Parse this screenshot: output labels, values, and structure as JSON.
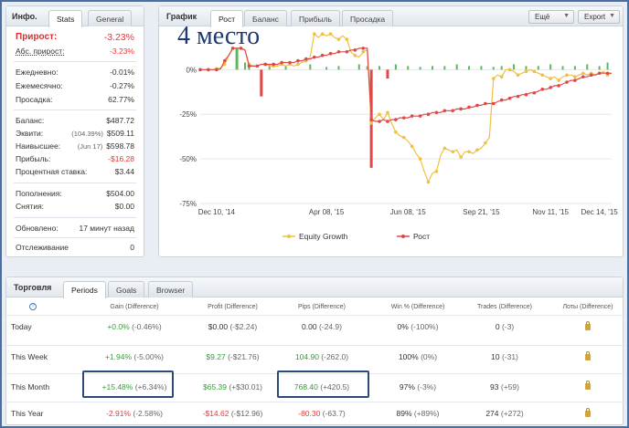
{
  "left_panel": {
    "title": "Инфо.",
    "tabs": [
      "Stats",
      "General"
    ],
    "gain_label": "Прирост:",
    "gain_value": "-3.23%",
    "abs_gain_label": "Абс. прирост:",
    "abs_gain_value": "-3.23%",
    "daily_label": "Ежедневно:",
    "daily_value": "-0.01%",
    "monthly_label": "Ежемесячно:",
    "monthly_value": "-0.27%",
    "drawdown_label": "Просадка:",
    "drawdown_value": "62.77%",
    "balance_label": "Баланс:",
    "balance_value": "$487.72",
    "equity_label": "Эквити:",
    "equity_pct": "(104.39%)",
    "equity_value": "$509.11",
    "highest_label": "Наивысшее:",
    "highest_date": "(Jun 17)",
    "highest_value": "$598.78",
    "profit_label": "Прибыль:",
    "profit_value": "-$16.28",
    "interest_label": "Процентная ставка:",
    "interest_value": "$3.44",
    "deposits_label": "Пополнения:",
    "deposits_value": "$504.00",
    "withdrawals_label": "Снятия:",
    "withdrawals_value": "$0.00",
    "updated_label": "Обновлено:",
    "updated_value": "17 минут назад",
    "tracking_label": "Отслеживание",
    "tracking_value": "0"
  },
  "chart_panel": {
    "title": "График",
    "tabs": [
      "Рост",
      "Баланс",
      "Прибыль",
      "Просадка"
    ],
    "export_menu": "Ещё",
    "export_button": "Export",
    "overlay_text": "4 место"
  },
  "chart_data": {
    "type": "line",
    "x_tick_labels": [
      "Dec 10, '14",
      "Apr 08, '15",
      "Jun 08, '15",
      "Sep 21, '15",
      "Nov 11, '15",
      "Dec 14, '15"
    ],
    "y_tick_labels": [
      "0%",
      "-25%",
      "-50%",
      "-75%"
    ],
    "ylim": [
      -75,
      15
    ],
    "legend_position": "bottom",
    "grid": true,
    "series": [
      {
        "name": "Equity Growth",
        "color": "#f0c040",
        "x": [
          0,
          0.05,
          0.1,
          0.15,
          0.2,
          0.25,
          0.3,
          0.35,
          0.4,
          0.45,
          0.5,
          0.55,
          0.6,
          0.65,
          0.7,
          0.75,
          0.8,
          0.85,
          0.9,
          0.95,
          1.0,
          1.05,
          1.1,
          1.15,
          1.2,
          1.25,
          1.3,
          1.35,
          1.4,
          1.45,
          1.5,
          1.55,
          1.6,
          1.65,
          1.7,
          1.75,
          1.8,
          1.85,
          1.9,
          1.95,
          2.0,
          2.05,
          2.1,
          2.15,
          2.2,
          2.25,
          2.3,
          2.35,
          2.4,
          2.45,
          2.5,
          2.55,
          2.6,
          2.65,
          2.7,
          2.75,
          2.8,
          2.85,
          2.9,
          2.95,
          3.0,
          3.05,
          3.1,
          3.15,
          3.2,
          3.25,
          3.3,
          3.35,
          3.4,
          3.45,
          3.5,
          3.55,
          3.6,
          3.65,
          3.7,
          3.75,
          3.8,
          3.85,
          3.9,
          3.95,
          4.0,
          4.05,
          4.1,
          4.15,
          4.2,
          4.25,
          4.3,
          4.35,
          4.4,
          4.45,
          4.5,
          4.55,
          4.6,
          4.65,
          4.7,
          4.75,
          4.8,
          4.85,
          4.9,
          4.95,
          5.0,
          5.05
        ],
        "y": [
          0,
          0,
          0,
          0,
          0.5,
          1,
          3,
          8,
          12,
          12,
          12,
          11,
          3,
          2,
          2,
          3,
          3,
          2,
          2,
          2,
          3,
          2,
          3,
          2,
          3,
          4,
          5,
          7,
          20,
          18,
          20,
          19,
          20,
          18,
          17,
          19,
          17,
          10,
          8,
          7,
          10,
          11,
          -30,
          -27,
          -25,
          -28,
          -24,
          -30,
          -35,
          -37,
          -38,
          -40,
          -43,
          -47,
          -50,
          -57,
          -63,
          -58,
          -57,
          -48,
          -44,
          -45,
          -46,
          -45,
          -49,
          -46,
          -46,
          -47,
          -45,
          -44,
          -41,
          -38,
          -5,
          -3,
          -4,
          0,
          0,
          -1,
          -3,
          -2,
          -1,
          0,
          -1,
          -2,
          -3,
          -4,
          -5,
          -4,
          -6,
          -4,
          -3,
          -3,
          -4,
          -3,
          -2,
          -3,
          -2,
          -3,
          -2,
          -1,
          -3,
          -2
        ]
      },
      {
        "name": "Рост",
        "color": "#e04848",
        "x": [
          0,
          0.05,
          0.1,
          0.15,
          0.2,
          0.25,
          0.3,
          0.35,
          0.4,
          0.45,
          0.5,
          0.55,
          0.6,
          0.65,
          0.7,
          0.75,
          0.8,
          0.85,
          0.9,
          0.95,
          1.0,
          1.05,
          1.1,
          1.15,
          1.2,
          1.25,
          1.3,
          1.35,
          1.4,
          1.45,
          1.5,
          1.55,
          1.6,
          1.65,
          1.7,
          1.75,
          1.8,
          1.85,
          1.9,
          1.95,
          2.0,
          2.05,
          2.1,
          2.15,
          2.2,
          2.25,
          2.3,
          2.35,
          2.4,
          2.45,
          2.5,
          2.55,
          2.6,
          2.65,
          2.7,
          2.75,
          2.8,
          2.85,
          2.9,
          2.95,
          3.0,
          3.05,
          3.1,
          3.15,
          3.2,
          3.25,
          3.3,
          3.35,
          3.4,
          3.45,
          3.5,
          3.55,
          3.6,
          3.65,
          3.7,
          3.75,
          3.8,
          3.85,
          3.9,
          3.95,
          4.0,
          4.05,
          4.1,
          4.15,
          4.2,
          4.25,
          4.3,
          4.35,
          4.4,
          4.45,
          4.5,
          4.55,
          4.6,
          4.65,
          4.7,
          4.75,
          4.8,
          4.85,
          4.9,
          4.95,
          5.0,
          5.05
        ],
        "y": [
          0,
          0,
          0,
          0,
          0,
          0.5,
          5,
          8,
          12,
          12,
          12,
          11,
          2,
          2,
          2,
          3,
          3,
          3,
          3,
          3,
          4,
          4,
          4,
          4,
          5,
          5,
          6,
          6,
          7,
          7,
          8,
          8,
          9,
          9,
          10,
          10,
          10,
          11,
          11,
          12,
          12,
          12,
          -28,
          -29,
          -29,
          -28,
          -29,
          -28,
          -28,
          -27,
          -27,
          -27,
          -26,
          -26,
          -26,
          -25,
          -25,
          -24,
          -24,
          -24,
          -23,
          -23,
          -23,
          -22,
          -22,
          -22,
          -21,
          -21,
          -20,
          -20,
          -19,
          -19,
          -19,
          -18,
          -17,
          -17,
          -16,
          -15,
          -15,
          -14,
          -14,
          -13,
          -13,
          -12,
          -11,
          -11,
          -10,
          -9,
          -9,
          -8,
          -7,
          -6,
          -6,
          -5,
          -4,
          -4,
          -3,
          -3,
          -2,
          -2,
          -2,
          -2
        ]
      }
    ],
    "bars_daily": {
      "color": "#5cb85c",
      "negative_color": "#e04848"
    }
  },
  "trade_panel": {
    "title": "Торговля",
    "tabs": [
      "Periods",
      "Goals",
      "Browser"
    ],
    "columns": [
      "",
      "Gain (Difference)",
      "Profit (Difference)",
      "Pips (Difference)",
      "Win % (Difference)",
      "Trades (Difference)",
      "Лоты (Difference)"
    ],
    "rows": [
      {
        "period": "Today",
        "gain": "+0.0%",
        "gain_diff": "(-0.46%)",
        "profit": "$0.00",
        "profit_diff": "(-$2.24)",
        "pips": "0.00",
        "pips_diff": "(-24.9)",
        "win": "0%",
        "win_diff": "(-100%)",
        "trades": "0",
        "trades_diff": "(-3)"
      },
      {
        "period": "This Week",
        "gain": "+1.94%",
        "gain_diff": "(-5.00%)",
        "profit": "$9.27",
        "profit_diff": "(-$21.76)",
        "pips": "104.90",
        "pips_diff": "(-262.0)",
        "win": "100%",
        "win_diff": "(0%)",
        "trades": "10",
        "trades_diff": "(-31)"
      },
      {
        "period": "This Month",
        "gain": "+15.48%",
        "gain_diff": "(+6.34%)",
        "profit": "$65.39",
        "profit_diff": "(+$30.01)",
        "pips": "768.40",
        "pips_diff": "(+420.5)",
        "win": "97%",
        "win_diff": "(-3%)",
        "trades": "93",
        "trades_diff": "(+59)"
      },
      {
        "period": "This Year",
        "gain": "-2.91%",
        "gain_diff": "(-2.58%)",
        "profit": "-$14.62",
        "profit_diff": "(-$12.96)",
        "pips": "-80.30",
        "pips_diff": "(-63.7)",
        "win": "89%",
        "win_diff": "(+89%)",
        "trades": "274",
        "trades_diff": "(+272)"
      }
    ]
  }
}
